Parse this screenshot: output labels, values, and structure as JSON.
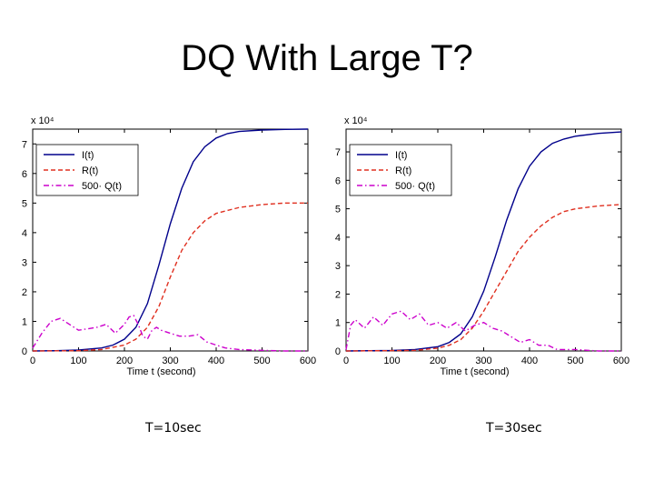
{
  "title": "DQ With Large T?",
  "captions": [
    "T=10sec",
    "T=30sec"
  ],
  "colors": {
    "I": "#00008b",
    "R": "#e03020",
    "Q": "#cc00cc"
  },
  "chart_data": [
    {
      "type": "line",
      "title": "",
      "xlabel": "Time t (second)",
      "ylabel": "",
      "y_multiplier": "x 10⁴",
      "xlim": [
        0,
        600
      ],
      "ylim": [
        0,
        7.5
      ],
      "xticks": [
        0,
        100,
        200,
        300,
        400,
        500,
        600
      ],
      "yticks": [
        0,
        1,
        2,
        3,
        4,
        5,
        6,
        7
      ],
      "grid": false,
      "legend_position": "top-left",
      "series": [
        {
          "name": "I(t)",
          "style": "solid",
          "color": "#00008b",
          "x": [
            0,
            50,
            100,
            150,
            175,
            200,
            225,
            250,
            275,
            300,
            325,
            350,
            375,
            400,
            425,
            450,
            500,
            550,
            600
          ],
          "y": [
            0,
            0.01,
            0.03,
            0.1,
            0.2,
            0.4,
            0.8,
            1.6,
            2.9,
            4.3,
            5.5,
            6.4,
            6.9,
            7.2,
            7.35,
            7.42,
            7.47,
            7.49,
            7.5
          ]
        },
        {
          "name": "R(t)",
          "style": "dashed",
          "color": "#e03020",
          "x": [
            0,
            100,
            150,
            200,
            225,
            250,
            275,
            300,
            325,
            350,
            375,
            400,
            450,
            500,
            550,
            600
          ],
          "y": [
            0,
            0.01,
            0.05,
            0.2,
            0.4,
            0.8,
            1.5,
            2.5,
            3.4,
            4.0,
            4.4,
            4.65,
            4.85,
            4.95,
            5.0,
            5.0
          ]
        },
        {
          "name": "500· Q(t)",
          "style": "dash-dot",
          "color": "#cc00cc",
          "x": [
            0,
            20,
            40,
            60,
            80,
            100,
            120,
            140,
            160,
            180,
            200,
            210,
            220,
            230,
            240,
            250,
            260,
            270,
            280,
            300,
            320,
            340,
            360,
            380,
            400,
            420,
            450,
            500,
            550,
            600
          ],
          "y": [
            0.1,
            0.6,
            1.0,
            1.1,
            0.9,
            0.7,
            0.75,
            0.8,
            0.9,
            0.6,
            0.9,
            1.15,
            1.2,
            0.9,
            0.5,
            0.4,
            0.7,
            0.8,
            0.7,
            0.6,
            0.5,
            0.5,
            0.55,
            0.3,
            0.2,
            0.1,
            0.05,
            0.02,
            0.0,
            0.0
          ]
        }
      ]
    },
    {
      "type": "line",
      "title": "",
      "xlabel": "Time t (second)",
      "ylabel": "",
      "y_multiplier": "x 10⁴",
      "xlim": [
        0,
        600
      ],
      "ylim": [
        0,
        7.8
      ],
      "xticks": [
        0,
        100,
        200,
        300,
        400,
        500,
        600
      ],
      "yticks": [
        0,
        1,
        2,
        3,
        4,
        5,
        6,
        7
      ],
      "grid": false,
      "legend_position": "top-left",
      "series": [
        {
          "name": "I(t)",
          "style": "solid",
          "color": "#00008b",
          "x": [
            0,
            100,
            150,
            200,
            225,
            250,
            275,
            300,
            325,
            350,
            375,
            400,
            425,
            450,
            475,
            500,
            550,
            600
          ],
          "y": [
            0,
            0.02,
            0.05,
            0.15,
            0.3,
            0.6,
            1.2,
            2.1,
            3.3,
            4.6,
            5.7,
            6.5,
            7.0,
            7.3,
            7.45,
            7.55,
            7.65,
            7.7
          ]
        },
        {
          "name": "R(t)",
          "style": "dashed",
          "color": "#e03020",
          "x": [
            0,
            150,
            200,
            225,
            250,
            275,
            300,
            325,
            350,
            375,
            400,
            425,
            450,
            475,
            500,
            550,
            600
          ],
          "y": [
            0,
            0.02,
            0.1,
            0.2,
            0.4,
            0.8,
            1.4,
            2.1,
            2.8,
            3.5,
            4.0,
            4.4,
            4.7,
            4.9,
            5.0,
            5.1,
            5.15
          ]
        },
        {
          "name": "500· Q(t)",
          "style": "dash-dot",
          "color": "#cc00cc",
          "x": [
            0,
            10,
            20,
            40,
            60,
            80,
            100,
            120,
            140,
            160,
            180,
            200,
            220,
            240,
            260,
            280,
            300,
            320,
            340,
            360,
            380,
            400,
            420,
            440,
            460,
            500,
            550,
            600
          ],
          "y": [
            0.05,
            0.9,
            1.1,
            0.8,
            1.2,
            0.9,
            1.3,
            1.4,
            1.1,
            1.3,
            0.9,
            1.0,
            0.8,
            1.0,
            0.7,
            0.9,
            1.0,
            0.8,
            0.7,
            0.5,
            0.3,
            0.4,
            0.2,
            0.2,
            0.05,
            0.05,
            0.0,
            0.0
          ]
        }
      ]
    }
  ]
}
